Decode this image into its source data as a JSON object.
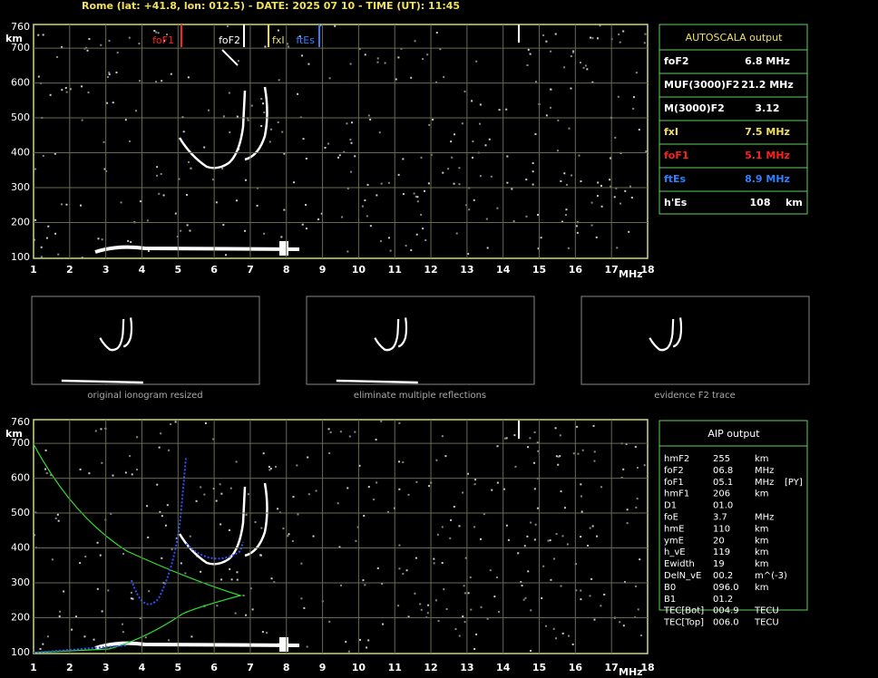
{
  "header": {
    "title": "Rome (lat: +41.8, lon: 012.5) - DATE: 2025 07 10 - TIME (UT): 11:45"
  },
  "axes": {
    "y_ticks": [
      "760",
      "700",
      "600",
      "500",
      "400",
      "300",
      "200",
      "100"
    ],
    "y_unit": "km",
    "x_ticks": [
      "1",
      "2",
      "3",
      "4",
      "5",
      "6",
      "7",
      "8",
      "9",
      "10",
      "11",
      "12",
      "13",
      "14",
      "15",
      "16",
      "17",
      "18"
    ],
    "x_unit": "MHz"
  },
  "markers": [
    "foF1",
    "foF2",
    "fxI",
    "ftEs"
  ],
  "autoscala": {
    "title": "AUTOSCALA output",
    "rows": [
      [
        "foF2",
        "6.8 MHz"
      ],
      [
        "MUF(3000)F2",
        "21.2 MHz"
      ],
      [
        "M(3000)F2",
        "3.12"
      ],
      [
        "fxI",
        "7.5 MHz"
      ],
      [
        "foF1",
        "5.1 MHz"
      ],
      [
        "ftEs",
        "8.9 MHz"
      ],
      [
        "h'Es",
        "108",
        "km"
      ]
    ]
  },
  "thumbnails": [
    "original ionogram resized",
    "eliminate multiple reflections",
    "evidence F2 trace"
  ],
  "aip": {
    "title": "AIP output",
    "rows": [
      [
        "hmF2",
        "255",
        "km"
      ],
      [
        "foF2",
        "06.8",
        "MHz"
      ],
      [
        "foF1",
        "05.1",
        "MHz",
        "[PY]"
      ],
      [
        "hmF1",
        "206",
        "km"
      ],
      [
        "D1",
        "01.0"
      ],
      [
        "foE",
        "3.7",
        "MHz"
      ],
      [
        "hmE",
        "110",
        "km"
      ],
      [
        "ymE",
        "20",
        "km"
      ],
      [
        "h_vE",
        "119",
        "km"
      ],
      [
        "Ewidth",
        "19",
        "km"
      ],
      [
        "DelN_vE",
        "00.2",
        "m^(-3)"
      ],
      [
        "B0",
        "096.0",
        "km"
      ],
      [
        "B1",
        "01.2"
      ],
      [
        "TEC[Bot]",
        "004.9",
        "TECU"
      ],
      [
        "TEC[Top]",
        "006.0",
        "TECU"
      ]
    ]
  }
}
